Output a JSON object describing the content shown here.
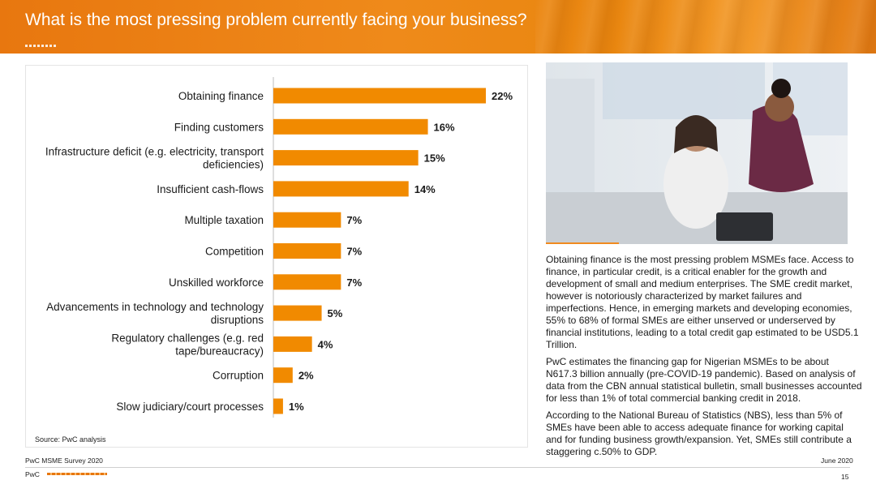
{
  "header": {
    "title": "What is the most pressing problem currently facing your business?"
  },
  "chart_data": {
    "type": "bar",
    "orientation": "horizontal",
    "title": "",
    "xlabel": "",
    "ylabel": "",
    "categories": [
      "Obtaining finance",
      "Finding customers",
      "Infrastructure deficit (e.g. electricity, transport deficiencies)",
      "Insufficient cash-flows",
      "Multiple taxation",
      "Competition",
      "Unskilled workforce",
      "Advancements in technology and technology disruptions",
      "Regulatory challenges (e.g. red tape/bureaucracy)",
      "Corruption",
      "Slow judiciary/court processes"
    ],
    "category_lines": [
      [
        "Obtaining finance"
      ],
      [
        "Finding customers"
      ],
      [
        "Infrastructure deficit (e.g. electricity, transport",
        "deficiencies)"
      ],
      [
        "Insufficient cash-flows"
      ],
      [
        "Multiple taxation"
      ],
      [
        "Competition"
      ],
      [
        "Unskilled workforce"
      ],
      [
        "Advancements in technology and technology",
        "disruptions"
      ],
      [
        "Regulatory challenges (e.g. red",
        "tape/bureaucracy)"
      ],
      [
        "Corruption"
      ],
      [
        "Slow judiciary/court processes"
      ]
    ],
    "values": [
      22,
      16,
      15,
      14,
      7,
      7,
      7,
      5,
      4,
      2,
      1
    ],
    "data_labels": [
      "22%",
      "16%",
      "15%",
      "14%",
      "7%",
      "7%",
      "7%",
      "5%",
      "4%",
      "2%",
      "1%"
    ],
    "unit": "%",
    "xlim": [
      0,
      22
    ],
    "grid": false,
    "legend": "none",
    "bar_color": "#f18a00"
  },
  "chart_source": "Source: PwC analysis",
  "description": {
    "paragraphs": [
      "Obtaining finance is the most pressing problem MSMEs face. Access to finance, in particular credit, is a critical enabler for the growth and development of small and medium enterprises. The SME credit market, however is notoriously characterized by market failures and imperfections. Hence, in emerging markets and developing economies, 55% to 68% of formal SMEs are either unserved or underserved by financial institutions, leading to a total credit gap estimated to be USD5.1 Trillion.",
      "PwC estimates the financing gap for Nigerian MSMEs to be about N617.3 billion annually (pre-COVID-19 pandemic). Based on analysis of data from the CBN annual statistical bulletin, small businesses accounted for less than 1% of total commercial banking credit in 2018.",
      "According to the National Bureau of Statistics (NBS), less than 5% of SMEs have been able to access adequate finance for working capital and for funding business growth/expansion. Yet, SMEs still contribute a staggering c.50% to GDP."
    ]
  },
  "footer": {
    "survey": "PwC MSME Survey 2020",
    "date": "June 2020",
    "brand": "PwC",
    "page_number": "15"
  },
  "colors": {
    "accent": "#e8770f",
    "bar": "#f18a00",
    "text": "#1a1a1a"
  }
}
